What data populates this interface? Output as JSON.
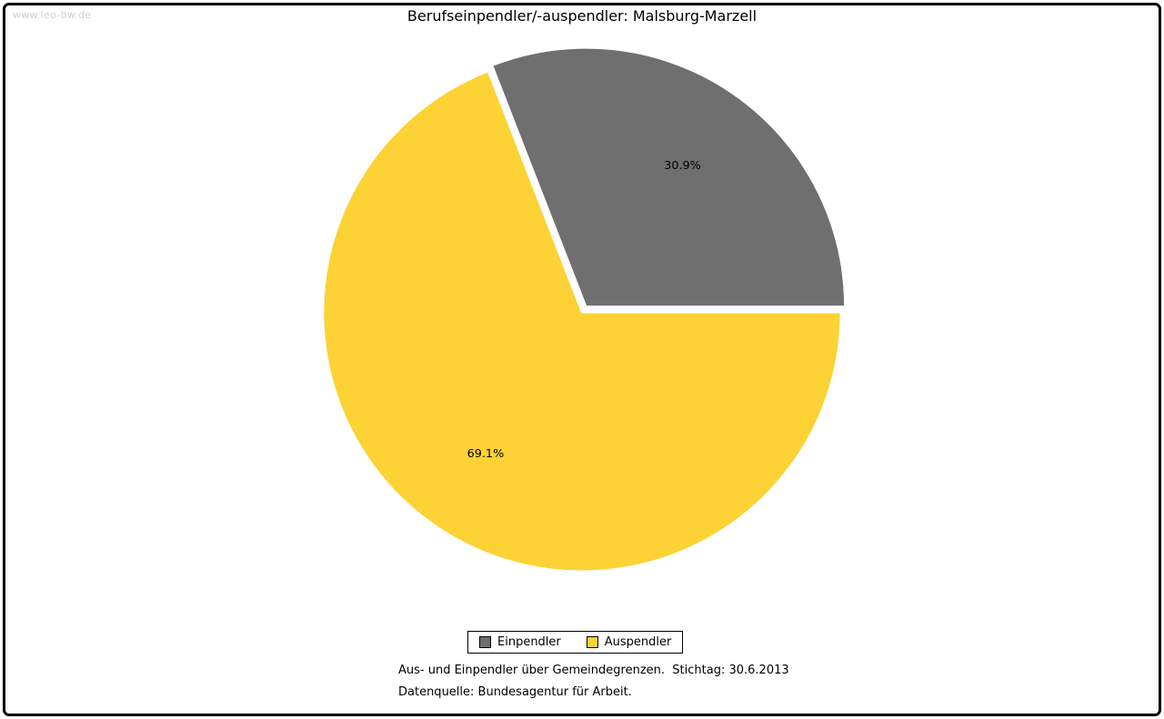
{
  "watermark": "www.leo-bw.de",
  "title": "Berufseinpendler/-auspendler: Malsburg-Marzell",
  "chart_data": {
    "type": "pie",
    "title": "Berufseinpendler/-auspendler: Malsburg-Marzell",
    "start_angle_deg": 0,
    "direction": "counterclockwise",
    "legend_position": "bottom",
    "slices": [
      {
        "label": "Einpendler",
        "value": 30.9,
        "display": "30.9%",
        "color": "#6f6f6f",
        "exploded": true
      },
      {
        "label": "Auspendler",
        "value": 69.1,
        "display": "69.1%",
        "color": "#fcd235",
        "exploded": false
      }
    ]
  },
  "legend": {
    "items": [
      {
        "label": "Einpendler"
      },
      {
        "label": "Auspendler"
      }
    ]
  },
  "footnotes": {
    "line1": "Aus- und Einpendler über Gemeindegrenzen.  Stichtag: 30.6.2013",
    "line2": "Datenquelle: Bundesagentur für Arbeit."
  }
}
